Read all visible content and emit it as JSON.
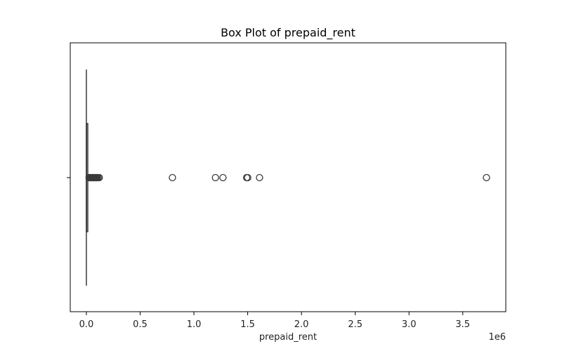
{
  "chart_data": {
    "type": "box",
    "title": "Box Plot of prepaid_rent",
    "xlabel": "prepaid_rent",
    "ylabel": "",
    "x_tick_labels": [
      "0.0",
      "0.5",
      "1.0",
      "1.5",
      "2.0",
      "2.5",
      "3.0",
      "3.5"
    ],
    "x_tick_values": [
      0,
      500000,
      1000000,
      1500000,
      2000000,
      2500000,
      3000000,
      3500000
    ],
    "x_offset_label": "1e6",
    "xlim": [
      -150000,
      3900000
    ],
    "box": {
      "min": 0,
      "q1": 0,
      "median": 0,
      "q3": 12000,
      "max": 20000
    },
    "outliers": [
      25000,
      30000,
      35000,
      40000,
      45000,
      50000,
      55000,
      60000,
      65000,
      70000,
      75000,
      80000,
      85000,
      90000,
      95000,
      100000,
      110000,
      120000,
      800000,
      1200000,
      1270000,
      1490000,
      1500000,
      1610000,
      3720000
    ],
    "grid": false,
    "legend": "none"
  }
}
